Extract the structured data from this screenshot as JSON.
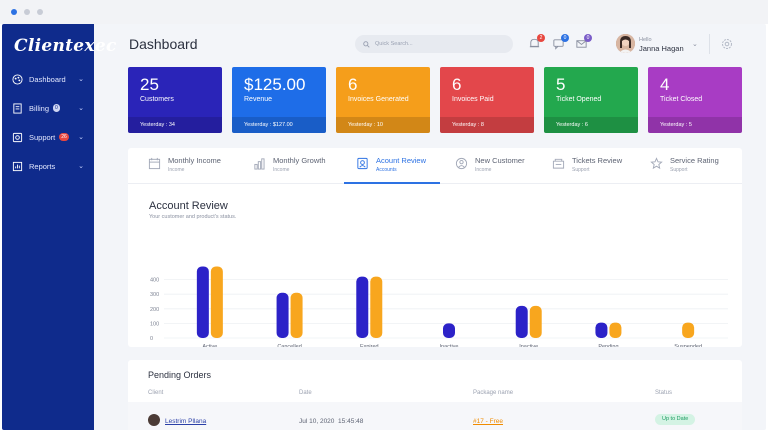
{
  "app": {
    "brand": "Clientexec",
    "page_title": "Dashboard"
  },
  "sidebar": {
    "items": [
      {
        "label": "Dashboard",
        "icon": "palette-icon",
        "badge": ""
      },
      {
        "label": "Billing",
        "icon": "invoice-icon",
        "badge": "0"
      },
      {
        "label": "Support",
        "icon": "support-icon",
        "badge": "26"
      },
      {
        "label": "Reports",
        "icon": "chart-icon",
        "badge": ""
      }
    ]
  },
  "header": {
    "search_placeholder": "Quick Search...",
    "notifications": [
      {
        "icon": "bell-icon",
        "count": "2",
        "color": "#e8473f"
      },
      {
        "icon": "chat-icon",
        "count": "0",
        "color": "#2d72e3"
      },
      {
        "icon": "mail-icon",
        "count": "0",
        "color": "#7a5cc8"
      }
    ],
    "user": {
      "greeting": "Hello",
      "name": "Janna Hagan"
    }
  },
  "cards": [
    {
      "value": "25",
      "label": "Customers",
      "footer": "Yesterday : 34",
      "color": "#2a24b8"
    },
    {
      "value": "$125.00",
      "label": "Revenue",
      "footer": "Yesterday : $127.00",
      "color": "#1e6de8"
    },
    {
      "value": "6",
      "label": "Invoices Generated",
      "footer": "Yesterday : 10",
      "color": "#f59e1b"
    },
    {
      "value": "6",
      "label": "Invoices Paid",
      "footer": "Yesterday : 8",
      "color": "#e3474b"
    },
    {
      "value": "5",
      "label": "Ticket Opened",
      "footer": "Yesterday : 6",
      "color": "#23a84e"
    },
    {
      "value": "4",
      "label": "Ticket Closed",
      "footer": "Yesterday : 5",
      "color": "#a83cc4"
    }
  ],
  "tabs": [
    {
      "title": "Monthly Income",
      "sub": "Income",
      "icon": "calendar-icon",
      "active": false
    },
    {
      "title": "Monthly Growth",
      "sub": "Income",
      "icon": "growth-icon",
      "active": false
    },
    {
      "title": "Acount Review",
      "sub": "Accounts",
      "icon": "account-icon",
      "active": true
    },
    {
      "title": "New Customer",
      "sub": "Income",
      "icon": "user-icon",
      "active": false
    },
    {
      "title": "Tickets Review",
      "sub": "Support",
      "icon": "ticket-icon",
      "active": false
    },
    {
      "title": "Service Rating",
      "sub": "Support",
      "icon": "rating-icon",
      "active": false
    }
  ],
  "review": {
    "title": "Account Review",
    "subtitle": "Your customer and product's status."
  },
  "chart_data": {
    "type": "bar",
    "categories": [
      "Active",
      "Cancelled",
      "Expired",
      "Inactive",
      "Inactive",
      "Pending",
      "Suspended"
    ],
    "series": [
      {
        "values": [
          490,
          310,
          420,
          100,
          220,
          105,
          0
        ],
        "color": "#2c22c8"
      },
      {
        "values": [
          490,
          310,
          420,
          0,
          220,
          105,
          105
        ],
        "color": "#f8a61e"
      }
    ],
    "yticks": [
      0,
      100,
      200,
      300,
      400
    ],
    "ylim": [
      0,
      500
    ],
    "grid": true
  },
  "orders": {
    "title": "Pending Orders",
    "columns": [
      "Client",
      "Date",
      "Package name",
      "Status"
    ],
    "rows": [
      {
        "client": "Lestrim Pllana",
        "date": "Jul 10, 2020",
        "time": "15:45:48",
        "package": "#17 - Free",
        "status": "Up to Date"
      }
    ]
  }
}
